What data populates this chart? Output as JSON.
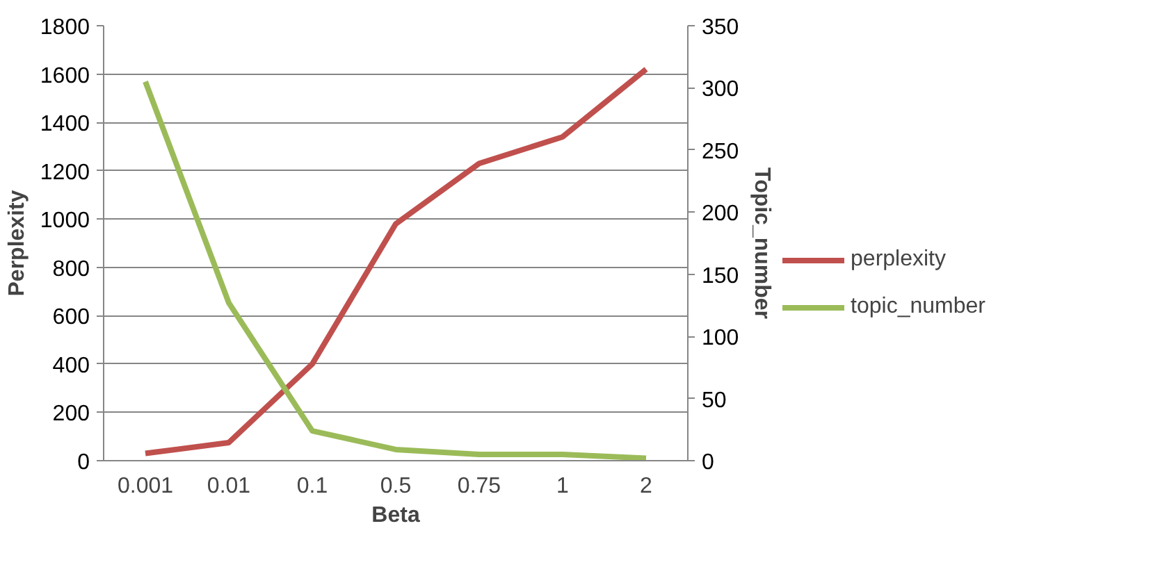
{
  "chart_data": {
    "type": "line",
    "xlabel": "Beta",
    "ylabel": "Perplexity",
    "y2label": "Topic_number",
    "categories": [
      "0.001",
      "0.01",
      "0.1",
      "0.5",
      "0.75",
      "1",
      "2"
    ],
    "series": [
      {
        "name": "perplexity",
        "color": "#c0504d",
        "values": [
          30,
          75,
          400,
          980,
          1230,
          1340,
          1620
        ]
      },
      {
        "name": "topic_number",
        "color": "#9bbb59",
        "values": [
          305,
          127,
          24,
          9,
          5,
          5,
          2
        ],
        "axis": "y2"
      }
    ],
    "ylim": [
      0,
      1800
    ],
    "yticks": [
      0,
      200,
      400,
      600,
      800,
      1000,
      1200,
      1400,
      1600,
      1800
    ],
    "y2lim": [
      0,
      350
    ],
    "y2ticks": [
      0,
      50,
      100,
      150,
      200,
      250,
      300,
      350
    ],
    "grid": "y",
    "legend": "right",
    "marker": "none",
    "line_style": "solid"
  }
}
